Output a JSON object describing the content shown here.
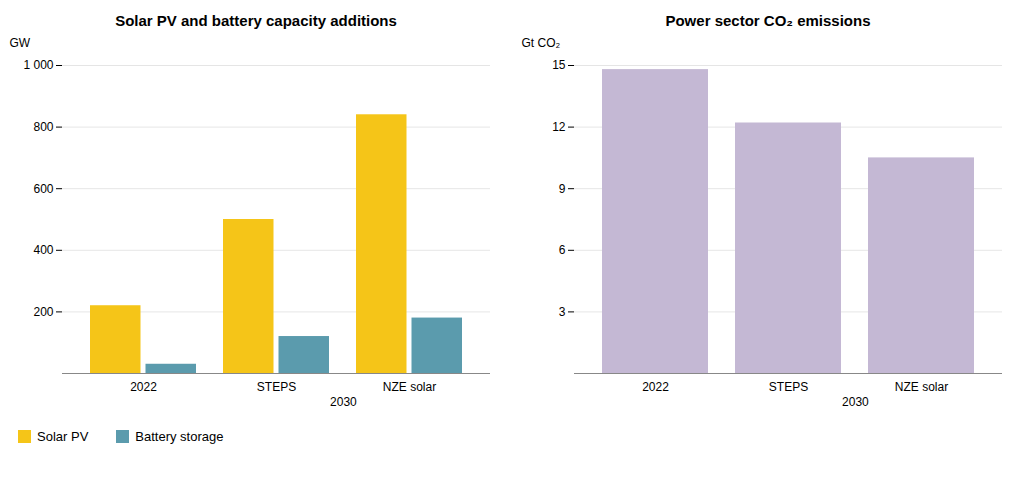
{
  "chart_data": [
    {
      "type": "bar",
      "title": "Solar PV and battery capacity additions",
      "ylabel": "GW",
      "categories": [
        "2022",
        "STEPS",
        "NZE solar"
      ],
      "series": [
        {
          "name": "Solar PV",
          "color": "#F5C518",
          "values": [
            220,
            500,
            840
          ]
        },
        {
          "name": "Battery storage",
          "color": "#5B9BAD",
          "values": [
            30,
            120,
            180
          ]
        }
      ],
      "ylim": [
        0,
        1000
      ],
      "yticks": [
        200,
        400,
        600,
        800,
        {
          "value": 1000,
          "label": "1 000"
        }
      ],
      "grid": true,
      "legend": "lower left",
      "annotations": [
        {
          "text": "2030",
          "categories": [
            "STEPS",
            "NZE solar"
          ]
        }
      ]
    },
    {
      "type": "bar",
      "title": "Power sector CO₂ emissions",
      "ylabel": "Gt CO₂",
      "categories": [
        "2022",
        "STEPS",
        "NZE solar"
      ],
      "values": [
        14.8,
        12.2,
        10.5
      ],
      "color": "#C4B8D4",
      "ylim": [
        0,
        15
      ],
      "yticks": [
        3,
        6,
        9,
        12,
        15
      ],
      "grid": true,
      "annotations": [
        {
          "text": "2030",
          "categories": [
            "STEPS",
            "NZE solar"
          ]
        }
      ]
    }
  ]
}
